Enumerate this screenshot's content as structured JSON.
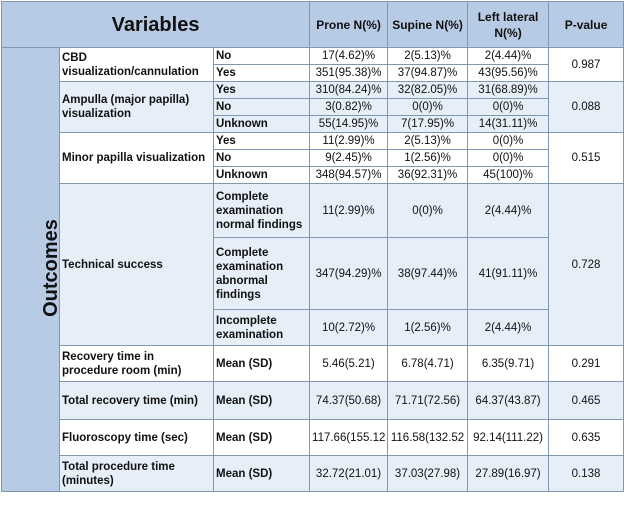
{
  "header": {
    "variables": "Variables",
    "prone": "Prone N(%)",
    "supine": "Supine N(%)",
    "left_lateral": "Left lateral N(%)",
    "p_value": "P-value"
  },
  "group_label": "Outcomes",
  "groups": [
    {
      "variable": "CBD visualization/cannulation",
      "p_value": "0.987",
      "rows": [
        {
          "level": "No",
          "prone": "17(4.62)%",
          "supine": "2(5.13)%",
          "left": "2(4.44)%"
        },
        {
          "level": "Yes",
          "prone": "351(95.38)%",
          "supine": "37(94.87)%",
          "left": "43(95.56)%"
        }
      ]
    },
    {
      "variable": "Ampulla (major papilla) visualization",
      "p_value": "0.088",
      "rows": [
        {
          "level": "Yes",
          "prone": "310(84.24)%",
          "supine": "32(82.05)%",
          "left": "31(68.89)%"
        },
        {
          "level": "No",
          "prone": "3(0.82)%",
          "supine": "0(0)%",
          "left": "0(0)%"
        },
        {
          "level": "Unknown",
          "prone": "55(14.95)%",
          "supine": "7(17.95)%",
          "left": "14(31.11)%"
        }
      ]
    },
    {
      "variable": "Minor papilla visualization",
      "p_value": "0.515",
      "rows": [
        {
          "level": "Yes",
          "prone": "11(2.99)%",
          "supine": "2(5.13)%",
          "left": "0(0)%"
        },
        {
          "level": "No",
          "prone": "9(2.45)%",
          "supine": "1(2.56)%",
          "left": "0(0)%"
        },
        {
          "level": "Unknown",
          "prone": "348(94.57)%",
          "supine": "36(92.31)%",
          "left": "45(100)%"
        }
      ]
    },
    {
      "variable": "Technical success",
      "p_value": "0.728",
      "rows": [
        {
          "level": "Complete examination normal findings",
          "prone": "11(2.99)%",
          "supine": "0(0)%",
          "left": "2(4.44)%"
        },
        {
          "level": "Complete examination abnormal findings",
          "prone": "347(94.29)%",
          "supine": "38(97.44)%",
          "left": "41(91.11)%"
        },
        {
          "level": "Incomplete examination",
          "prone": "10(2.72)%",
          "supine": "1(2.56)%",
          "left": "2(4.44)%"
        }
      ]
    },
    {
      "variable": "Recovery time in procedure room (min)",
      "p_value": "0.291",
      "rows": [
        {
          "level": "Mean (SD)",
          "prone": "5.46(5.21)",
          "supine": "6.78(4.71)",
          "left": "6.35(9.71)"
        }
      ]
    },
    {
      "variable": "Total recovery time (min)",
      "p_value": "0.465",
      "rows": [
        {
          "level": "Mean (SD)",
          "prone": "74.37(50.68)",
          "supine": "71.71(72.56)",
          "left": "64.37(43.87)"
        }
      ]
    },
    {
      "variable": "Fluoroscopy time (sec)",
      "p_value": "0.635",
      "rows": [
        {
          "level": "Mean (SD)",
          "prone": "117.66(155.12",
          "supine": "116.58(132.52",
          "left": "92.14(111.22)"
        }
      ]
    },
    {
      "variable": "Total procedure time (minutes)",
      "p_value": "0.138",
      "rows": [
        {
          "level": "Mean (SD)",
          "prone": "32.72(21.01)",
          "supine": "37.03(27.98)",
          "left": "27.89(16.97)"
        }
      ]
    }
  ]
}
